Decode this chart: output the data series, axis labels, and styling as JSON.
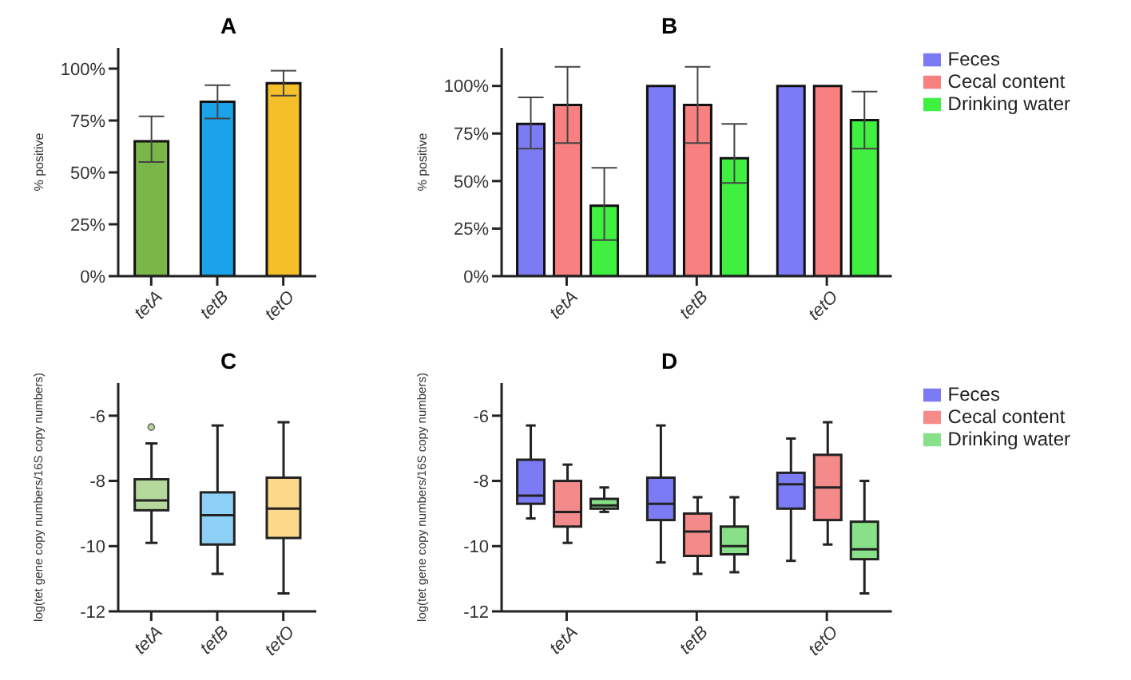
{
  "chart_data": [
    {
      "type": "bar",
      "title": "A",
      "ylabel": "% positive",
      "categories": [
        "tetA",
        "tetB",
        "tetO"
      ],
      "values": [
        65,
        84,
        93
      ],
      "colors": [
        "#7ab648",
        "#1aa3e8",
        "#f5bf2a"
      ],
      "errors": [
        [
          55,
          77
        ],
        [
          76,
          92
        ],
        [
          87,
          99
        ]
      ],
      "ylim": [
        0,
        110
      ],
      "yticks": [
        {
          "value": 0,
          "label": "0%"
        },
        {
          "value": 25,
          "label": "25%"
        },
        {
          "value": 50,
          "label": "50%"
        },
        {
          "value": 75,
          "label": "75%"
        },
        {
          "value": 100,
          "label": "100%"
        }
      ],
      "grid": false
    },
    {
      "type": "bar",
      "title": "B",
      "ylabel": "% positive",
      "categories": [
        "tetA",
        "tetB",
        "tetO"
      ],
      "series": [
        {
          "name": "Feces",
          "color": "#7b7bf5",
          "values": [
            80,
            100,
            100
          ],
          "errors": [
            [
              67,
              94
            ],
            null,
            null
          ]
        },
        {
          "name": "Cecal content",
          "color": "#f88080",
          "values": [
            90,
            90,
            100
          ],
          "errors": [
            [
              70,
              110
            ],
            [
              70,
              110
            ],
            null
          ]
        },
        {
          "name": "Drinking water",
          "color": "#40f040",
          "values": [
            37,
            62,
            82
          ],
          "errors": [
            [
              19,
              57
            ],
            [
              49,
              80
            ],
            [
              67,
              97
            ]
          ]
        }
      ],
      "ylim": [
        0,
        120
      ],
      "yticks": [
        {
          "value": 0,
          "label": "0%"
        },
        {
          "value": 25,
          "label": "25%"
        },
        {
          "value": 50,
          "label": "50%"
        },
        {
          "value": 75,
          "label": "75%"
        },
        {
          "value": 100,
          "label": "100%"
        }
      ],
      "grid": false,
      "legend": "top right"
    },
    {
      "type": "box",
      "title": "C",
      "ylabel": "log(tet gene copy numbers/16S copy numbers)",
      "categories": [
        "tetA",
        "tetB",
        "tetO"
      ],
      "colors": [
        "#b5d99c",
        "#8ecff5",
        "#fcd98a"
      ],
      "boxes": [
        {
          "low": -9.9,
          "q1": -8.9,
          "median": -8.6,
          "q3": -7.95,
          "high": -6.85,
          "outliers": [
            -6.35
          ]
        },
        {
          "low": -10.85,
          "q1": -9.95,
          "median": -9.05,
          "q3": -8.35,
          "high": -6.3
        },
        {
          "low": -11.45,
          "q1": -9.75,
          "median": -8.85,
          "q3": -7.9,
          "high": -6.2
        }
      ],
      "ylim": [
        -12,
        -5
      ],
      "yticks": [
        -12,
        -10,
        -8,
        -6
      ],
      "grid": false
    },
    {
      "type": "box",
      "title": "D",
      "ylabel": "log(tet gene copy numbers/16S copy numbers)",
      "categories": [
        "tetA",
        "tetB",
        "tetO"
      ],
      "series": [
        {
          "name": "Feces",
          "color": "#7b7bf5",
          "boxes": [
            {
              "low": -9.15,
              "q1": -8.7,
              "median": -8.45,
              "q3": -7.35,
              "high": -6.3
            },
            {
              "low": -10.5,
              "q1": -9.2,
              "median": -8.7,
              "q3": -7.9,
              "high": -6.3
            },
            {
              "low": -10.45,
              "q1": -8.85,
              "median": -8.1,
              "q3": -7.75,
              "high": -6.7
            }
          ]
        },
        {
          "name": "Cecal content",
          "color": "#f48a8a",
          "boxes": [
            {
              "low": -9.9,
              "q1": -9.4,
              "median": -8.95,
              "q3": -8.0,
              "high": -7.5
            },
            {
              "low": -10.85,
              "q1": -10.3,
              "median": -9.55,
              "q3": -9.0,
              "high": -8.5
            },
            {
              "low": -9.95,
              "q1": -9.2,
              "median": -8.2,
              "q3": -7.2,
              "high": -6.2
            }
          ]
        },
        {
          "name": "Drinking water",
          "color": "#88e088",
          "boxes": [
            {
              "low": -8.95,
              "q1": -8.85,
              "median": -8.75,
              "q3": -8.55,
              "high": -8.2
            },
            {
              "low": -10.8,
              "q1": -10.25,
              "median": -10.0,
              "q3": -9.4,
              "high": -8.5
            },
            {
              "low": -11.45,
              "q1": -10.4,
              "median": -10.1,
              "q3": -9.25,
              "high": -8.0
            }
          ]
        }
      ],
      "ylim": [
        -12,
        -5
      ],
      "yticks": [
        -12,
        -10,
        -8,
        -6
      ],
      "grid": false,
      "legend": "top right"
    }
  ]
}
